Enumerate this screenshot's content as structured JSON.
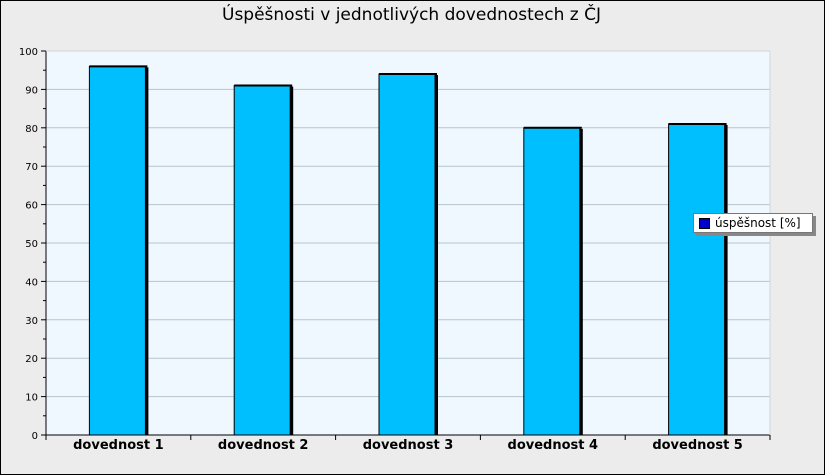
{
  "chart_data": {
    "type": "bar",
    "title": "Úspěšnosti v jednotlivých dovednostech z ČJ",
    "categories": [
      "dovednost 1",
      "dovednost 2",
      "dovednost 3",
      "dovednost 4",
      "dovednost 5"
    ],
    "series": [
      {
        "name": "úspěšnost [%]",
        "values": [
          96,
          91,
          94,
          80,
          81
        ]
      }
    ],
    "xlabel": "",
    "ylabel": "",
    "ylim": [
      0,
      100
    ],
    "yticks": [
      0,
      10,
      20,
      30,
      40,
      50,
      60,
      70,
      80,
      90,
      100
    ],
    "grid": true,
    "legend_position": "right",
    "colors": {
      "bar": "#00bfff",
      "legend_swatch": "#0000cc",
      "plot_bg": "#f0f8ff"
    }
  }
}
